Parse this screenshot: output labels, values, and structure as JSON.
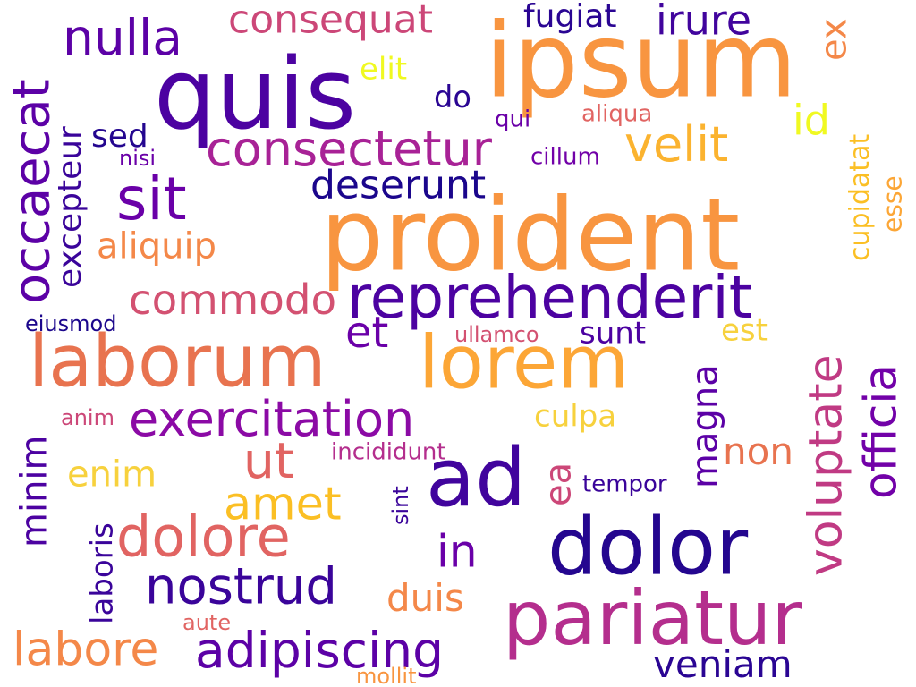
{
  "words": [
    {
      "text": "ipsum",
      "color": "#f89540",
      "vertical": false
    },
    {
      "text": "quis",
      "color": "#4c02a1",
      "vertical": false
    },
    {
      "text": "proident",
      "color": "#f89540",
      "vertical": false
    },
    {
      "text": "laborum",
      "color": "#e8734f",
      "vertical": false
    },
    {
      "text": "lorem",
      "color": "#fca636",
      "vertical": false
    },
    {
      "text": "ad",
      "color": "#41049d",
      "vertical": false
    },
    {
      "text": "dolor",
      "color": "#24068f",
      "vertical": false
    },
    {
      "text": "pariatur",
      "color": "#b42e8d",
      "vertical": false
    },
    {
      "text": "sit",
      "color": "#6a00a8",
      "vertical": false
    },
    {
      "text": "reprehenderit",
      "color": "#4c02a1",
      "vertical": false
    },
    {
      "text": "consectetur",
      "color": "#a82296",
      "vertical": false
    },
    {
      "text": "velit",
      "color": "#fbb32f",
      "vertical": false
    },
    {
      "text": "consequat",
      "color": "#cc4778",
      "vertical": false
    },
    {
      "text": "nulla",
      "color": "#5c01a6",
      "vertical": false
    },
    {
      "text": "irure",
      "color": "#41049d",
      "vertical": false
    },
    {
      "text": "fugiat",
      "color": "#2a0593",
      "vertical": false
    },
    {
      "text": "deserunt",
      "color": "#1b068c",
      "vertical": false
    },
    {
      "text": "commodo",
      "color": "#d35171",
      "vertical": false
    },
    {
      "text": "aliquip",
      "color": "#f48849",
      "vertical": false
    },
    {
      "text": "exercitation",
      "color": "#8b0aa5",
      "vertical": false
    },
    {
      "text": "nostrud",
      "color": "#3a049a",
      "vertical": false
    },
    {
      "text": "adipiscing",
      "color": "#5c01a6",
      "vertical": false
    },
    {
      "text": "dolore",
      "color": "#e16462",
      "vertical": false
    },
    {
      "text": "amet",
      "color": "#fbbf24",
      "vertical": false
    },
    {
      "text": "ut",
      "color": "#e16462",
      "vertical": false
    },
    {
      "text": "in",
      "color": "#6a00a8",
      "vertical": false
    },
    {
      "text": "labore",
      "color": "#f48849",
      "vertical": false
    },
    {
      "text": "veniam",
      "color": "#2a0593",
      "vertical": false
    },
    {
      "text": "duis",
      "color": "#f48849",
      "vertical": false
    },
    {
      "text": "enim",
      "color": "#f7d13d",
      "vertical": false
    },
    {
      "text": "et",
      "color": "#6a00a8",
      "vertical": false
    },
    {
      "text": "non",
      "color": "#e8734f",
      "vertical": false
    },
    {
      "text": "id",
      "color": "#f0f921",
      "vertical": false
    },
    {
      "text": "culpa",
      "color": "#f7d13d",
      "vertical": false
    },
    {
      "text": "sunt",
      "color": "#4c02a1",
      "vertical": false
    },
    {
      "text": "est",
      "color": "#f7d13d",
      "vertical": false
    },
    {
      "text": "do",
      "color": "#2a0593",
      "vertical": false
    },
    {
      "text": "elit",
      "color": "#f0f921",
      "vertical": false
    },
    {
      "text": "sed",
      "color": "#24068f",
      "vertical": false
    },
    {
      "text": "qui",
      "color": "#6a00a8",
      "vertical": false
    },
    {
      "text": "aliqua",
      "color": "#e16462",
      "vertical": false
    },
    {
      "text": "cillum",
      "color": "#7201a8",
      "vertical": false
    },
    {
      "text": "nisi",
      "color": "#6a00a8",
      "vertical": false
    },
    {
      "text": "eiusmod",
      "color": "#1b068c",
      "vertical": false
    },
    {
      "text": "ullamco",
      "color": "#d35171",
      "vertical": false
    },
    {
      "text": "anim",
      "color": "#cc4778",
      "vertical": false
    },
    {
      "text": "incididunt",
      "color": "#b42e8d",
      "vertical": false
    },
    {
      "text": "tempor",
      "color": "#3a049a",
      "vertical": false
    },
    {
      "text": "aute",
      "color": "#e16462",
      "vertical": false
    },
    {
      "text": "mollit",
      "color": "#f89540",
      "vertical": false
    },
    {
      "text": "occaecat",
      "color": "#5c01a6",
      "vertical": true
    },
    {
      "text": "excepteur",
      "color": "#3a049a",
      "vertical": true
    },
    {
      "text": "minim",
      "color": "#4c02a1",
      "vertical": true
    },
    {
      "text": "laboris",
      "color": "#3a049a",
      "vertical": true
    },
    {
      "text": "ea",
      "color": "#cc4778",
      "vertical": true
    },
    {
      "text": "magna",
      "color": "#5c01a6",
      "vertical": true
    },
    {
      "text": "voluptate",
      "color": "#c03a83",
      "vertical": true
    },
    {
      "text": "officia",
      "color": "#7201a8",
      "vertical": true
    },
    {
      "text": "ex",
      "color": "#f48849",
      "vertical": true
    },
    {
      "text": "cupidatat",
      "color": "#fbbf24",
      "vertical": true
    },
    {
      "text": "esse",
      "color": "#fca636",
      "vertical": true
    },
    {
      "text": "sint",
      "color": "#3a049a",
      "vertical": true
    }
  ]
}
